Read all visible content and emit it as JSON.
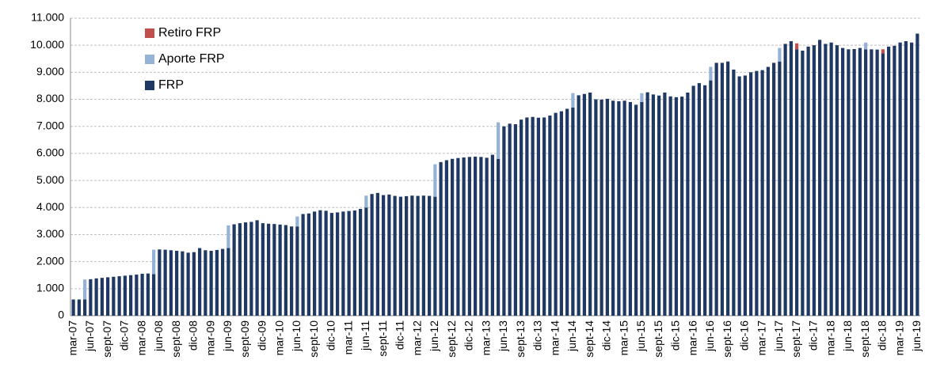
{
  "chart_data": {
    "type": "bar",
    "stacked": true,
    "categories": [
      "mar-07",
      null,
      null,
      "jun-07",
      null,
      null,
      "sept-07",
      null,
      null,
      "dic-07",
      null,
      null,
      "mar-08",
      null,
      null,
      "jun-08",
      null,
      null,
      "sept-08",
      null,
      null,
      "dic-08",
      null,
      null,
      "mar-09",
      null,
      null,
      "jun-09",
      null,
      null,
      "sept-09",
      null,
      null,
      "dic-09",
      null,
      null,
      "mar-10",
      null,
      null,
      "jun-10",
      null,
      null,
      "sept-10",
      null,
      null,
      "dic-10",
      null,
      null,
      "mar-11",
      null,
      null,
      "jun-11",
      null,
      null,
      "sept-11",
      null,
      null,
      "dic-11",
      null,
      null,
      "mar-12",
      null,
      null,
      "jun-12",
      null,
      null,
      "sept-12",
      null,
      null,
      "dic-12",
      null,
      null,
      "mar-13",
      null,
      null,
      "jun-13",
      null,
      null,
      "sept-13",
      null,
      null,
      "dic-13",
      null,
      null,
      "mar-14",
      null,
      null,
      "jun-14",
      null,
      null,
      "sept-14",
      null,
      null,
      "dic-14",
      null,
      null,
      "mar-15",
      null,
      null,
      "jun-15",
      null,
      null,
      "sept-15",
      null,
      null,
      "dic-15",
      null,
      null,
      "mar-16",
      null,
      null,
      "jun-16",
      null,
      null,
      "sept-16",
      null,
      null,
      "dic-16",
      null,
      null,
      "mar-17",
      null,
      null,
      "jun-17",
      null,
      null,
      "sept-17",
      null,
      null,
      "dic-17",
      null,
      null,
      "mar-18",
      null,
      null,
      "jun-18",
      null,
      null,
      "sept-18",
      null,
      null,
      "dic-18",
      null,
      null,
      "mar-19",
      null,
      null,
      "jun-19"
    ],
    "series": [
      {
        "name": "FRP",
        "color": "#1f3864",
        "values": [
          600,
          600,
          600,
          1350,
          1380,
          1400,
          1420,
          1440,
          1460,
          1480,
          1500,
          1520,
          1550,
          1560,
          1540,
          2450,
          2440,
          2420,
          2400,
          2380,
          2330,
          2350,
          2500,
          2420,
          2400,
          2430,
          2470,
          2500,
          3380,
          3420,
          3450,
          3470,
          3530,
          3420,
          3400,
          3390,
          3370,
          3350,
          3300,
          3300,
          3760,
          3780,
          3850,
          3900,
          3880,
          3800,
          3820,
          3850,
          3870,
          3890,
          3950,
          4000,
          4500,
          4540,
          4460,
          4480,
          4430,
          4400,
          4420,
          4440,
          4430,
          4440,
          4430,
          4400,
          5680,
          5750,
          5800,
          5830,
          5850,
          5870,
          5880,
          5870,
          5840,
          5950,
          5800,
          7000,
          7100,
          7080,
          7250,
          7330,
          7350,
          7320,
          7330,
          7400,
          7500,
          7560,
          7650,
          7700,
          8150,
          8200,
          8250,
          8000,
          7990,
          8020,
          7950,
          7930,
          7950,
          7900,
          7800,
          7900,
          8260,
          8180,
          8140,
          8250,
          8110,
          8080,
          8100,
          8250,
          8500,
          8600,
          8520,
          8700,
          9350,
          9350,
          9400,
          9100,
          8850,
          8880,
          9000,
          9050,
          9080,
          9200,
          9350,
          9400,
          10050,
          10150,
          9850,
          9800,
          9950,
          10000,
          10200,
          10050,
          10100,
          10000,
          9900,
          9850,
          9860,
          9900,
          9850,
          9850,
          9840,
          9700,
          9950,
          9980,
          10100,
          10150,
          10100,
          10430
        ]
      },
      {
        "name": "Aporte FRP",
        "color": "#95b3d7",
        "values": [
          0,
          0,
          740,
          0,
          0,
          0,
          0,
          0,
          0,
          0,
          0,
          0,
          0,
          0,
          900,
          0,
          0,
          0,
          0,
          0,
          0,
          0,
          0,
          0,
          0,
          0,
          0,
          840,
          0,
          0,
          0,
          0,
          0,
          0,
          0,
          0,
          0,
          0,
          0,
          370,
          0,
          0,
          0,
          0,
          0,
          0,
          0,
          0,
          0,
          0,
          0,
          440,
          0,
          0,
          0,
          0,
          0,
          0,
          0,
          0,
          0,
          0,
          0,
          1200,
          0,
          0,
          0,
          0,
          0,
          0,
          0,
          0,
          0,
          0,
          1350,
          0,
          0,
          0,
          0,
          0,
          0,
          0,
          0,
          0,
          0,
          0,
          0,
          530,
          0,
          0,
          0,
          0,
          0,
          0,
          0,
          0,
          0,
          0,
          0,
          330,
          0,
          0,
          0,
          0,
          0,
          0,
          0,
          0,
          0,
          0,
          0,
          500,
          0,
          0,
          0,
          0,
          0,
          0,
          0,
          0,
          0,
          0,
          0,
          500,
          0,
          0,
          0,
          0,
          0,
          0,
          0,
          0,
          0,
          0,
          0,
          0,
          0,
          0,
          250,
          0,
          0,
          0,
          0,
          0,
          0,
          0,
          0,
          0
        ]
      },
      {
        "name": "Retiro FRP",
        "color": "#c0504d",
        "values": [
          0,
          0,
          0,
          0,
          0,
          0,
          0,
          0,
          0,
          0,
          0,
          0,
          0,
          0,
          0,
          0,
          0,
          0,
          0,
          0,
          0,
          0,
          0,
          0,
          0,
          0,
          0,
          0,
          0,
          0,
          0,
          0,
          0,
          0,
          0,
          0,
          0,
          0,
          0,
          0,
          0,
          0,
          0,
          0,
          0,
          0,
          0,
          0,
          0,
          0,
          0,
          0,
          0,
          0,
          0,
          0,
          0,
          0,
          0,
          0,
          0,
          0,
          0,
          0,
          0,
          0,
          0,
          0,
          0,
          0,
          0,
          0,
          0,
          0,
          0,
          0,
          0,
          0,
          0,
          0,
          0,
          0,
          0,
          0,
          0,
          0,
          0,
          0,
          0,
          0,
          0,
          0,
          0,
          0,
          0,
          0,
          0,
          0,
          0,
          0,
          0,
          0,
          0,
          0,
          0,
          0,
          0,
          0,
          0,
          0,
          0,
          0,
          0,
          0,
          0,
          0,
          0,
          0,
          0,
          0,
          0,
          0,
          0,
          0,
          0,
          0,
          220,
          0,
          0,
          0,
          0,
          0,
          0,
          0,
          0,
          0,
          0,
          0,
          0,
          0,
          0,
          150,
          0,
          0,
          0,
          0,
          0,
          0
        ]
      }
    ],
    "ylim": [
      0,
      11000
    ],
    "yticks": [
      0,
      {
        "value": 1000,
        "label": "1.000"
      },
      {
        "value": 2000,
        "label": "2.000"
      },
      {
        "value": 3000,
        "label": "3.000"
      },
      {
        "value": 4000,
        "label": "4.000"
      },
      {
        "value": 5000,
        "label": "5.000"
      },
      {
        "value": 6000,
        "label": "6.000"
      },
      {
        "value": 7000,
        "label": "7.000"
      },
      {
        "value": 8000,
        "label": "8.000"
      },
      {
        "value": 9000,
        "label": "9.000"
      },
      {
        "value": 10000,
        "label": "10.000"
      },
      {
        "value": 11000,
        "label": "11.000"
      }
    ],
    "grid": true,
    "legend": "top-left"
  }
}
